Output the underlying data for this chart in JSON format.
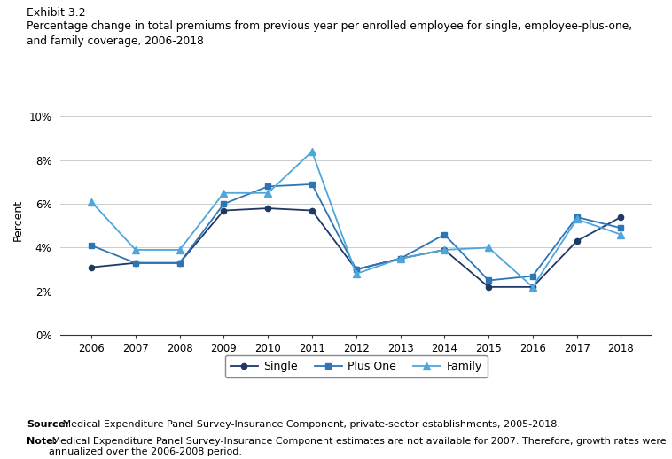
{
  "years": [
    2006,
    2007,
    2008,
    2009,
    2010,
    2011,
    2012,
    2013,
    2014,
    2015,
    2016,
    2017,
    2018
  ],
  "single": [
    3.1,
    3.3,
    3.3,
    5.7,
    5.8,
    5.7,
    3.0,
    3.5,
    3.9,
    2.2,
    2.2,
    4.3,
    5.4
  ],
  "plus_one": [
    4.1,
    3.3,
    3.3,
    6.0,
    6.8,
    6.9,
    3.0,
    3.5,
    4.6,
    2.5,
    2.7,
    5.4,
    4.9
  ],
  "family": [
    6.1,
    3.9,
    3.9,
    6.5,
    6.5,
    8.4,
    2.8,
    3.5,
    3.9,
    4.0,
    2.2,
    5.3,
    4.6
  ],
  "single_color": "#1f3864",
  "plus_one_color": "#2e75b6",
  "family_color": "#4ea6dc",
  "title_exhibit": "Exhibit 3.2",
  "title_main": "Percentage change in total premiums from previous year per enrolled employee for single, employee-plus-one,\nand family coverage, 2006-2018",
  "ylabel": "Percent",
  "yticks": [
    0,
    2,
    4,
    6,
    8,
    10
  ],
  "ytick_labels": [
    "0%",
    "2%",
    "4%",
    "6%",
    "8%",
    "10%"
  ],
  "ylim": [
    0,
    10.5
  ],
  "xlim": [
    2005.3,
    2018.7
  ],
  "source_bold": "Source:",
  "source_rest": " Medical Expenditure Panel Survey-Insurance Component, private-sector establishments, 2005-2018.",
  "note_bold": "Note:",
  "note_rest": " Medical Expenditure Panel Survey-Insurance Component estimates are not available for 2007. Therefore, growth rates were\nannualized over the 2006-2008 period.",
  "background_color": "#ffffff",
  "grid_color": "#cccccc",
  "spine_color": "#333333"
}
